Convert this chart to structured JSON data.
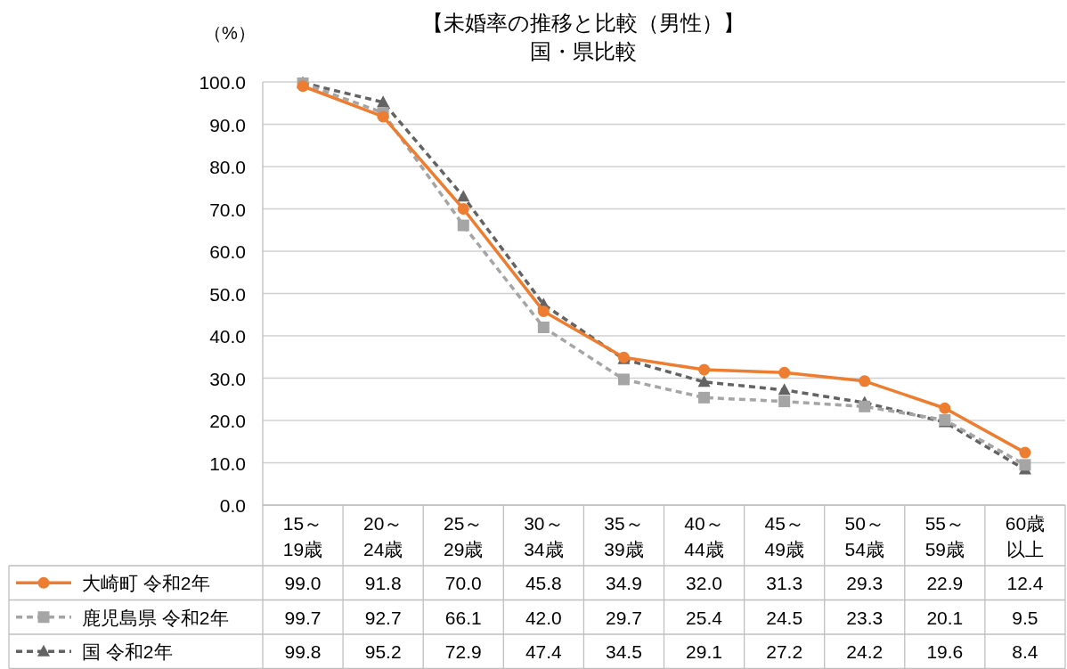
{
  "chart_data": {
    "type": "line",
    "title": "【未婚率の推移と比較（男性）】",
    "subtitle": "国・県比較",
    "ylabel": "（%）",
    "categories": [
      "15～19歳",
      "20～24歳",
      "25～29歳",
      "30～34歳",
      "35～39歳",
      "40～44歳",
      "45～49歳",
      "50～54歳",
      "55～59歳",
      "60歳以上"
    ],
    "series": [
      {
        "name": "大崎町 令和2年",
        "color": "#ed7d31",
        "marker": "circle",
        "line_style": "solid",
        "values": [
          99.0,
          91.8,
          70.0,
          45.8,
          34.9,
          32.0,
          31.3,
          29.3,
          22.9,
          12.4
        ],
        "value_labels": [
          "99.0",
          "91.8",
          "70.0",
          "45.8",
          "34.9",
          "32.0",
          "31.3",
          "29.3",
          "22.9",
          "12.4"
        ]
      },
      {
        "name": "鹿児島県 令和2年",
        "color": "#a5a5a5",
        "marker": "square",
        "line_style": "dashed",
        "values": [
          99.7,
          92.7,
          66.1,
          42.0,
          29.7,
          25.4,
          24.5,
          23.3,
          20.1,
          9.5
        ],
        "value_labels": [
          "99.7",
          "92.7",
          "66.1",
          "42.0",
          "29.7",
          "25.4",
          "24.5",
          "23.3",
          "20.1",
          "9.5"
        ]
      },
      {
        "name": "国 令和2年",
        "color": "#636363",
        "marker": "triangle",
        "line_style": "dashed",
        "values": [
          99.8,
          95.2,
          72.9,
          47.4,
          34.5,
          29.1,
          27.2,
          24.2,
          19.6,
          8.4
        ],
        "value_labels": [
          "99.8",
          "95.2",
          "72.9",
          "47.4",
          "34.5",
          "29.1",
          "27.2",
          "24.2",
          "19.6",
          "8.4"
        ]
      }
    ],
    "ylim": [
      0,
      100
    ],
    "yticks": [
      {
        "value": 0,
        "label": "0.0"
      },
      {
        "value": 10,
        "label": "10.0"
      },
      {
        "value": 20,
        "label": "20.0"
      },
      {
        "value": 30,
        "label": "30.0"
      },
      {
        "value": 40,
        "label": "40.0"
      },
      {
        "value": 50,
        "label": "50.0"
      },
      {
        "value": 60,
        "label": "60.0"
      },
      {
        "value": 70,
        "label": "70.0"
      },
      {
        "value": 80,
        "label": "80.0"
      },
      {
        "value": 90,
        "label": "90.0"
      },
      {
        "value": 100,
        "label": "100.0"
      }
    ],
    "grid": "y",
    "legend": "bottom"
  }
}
